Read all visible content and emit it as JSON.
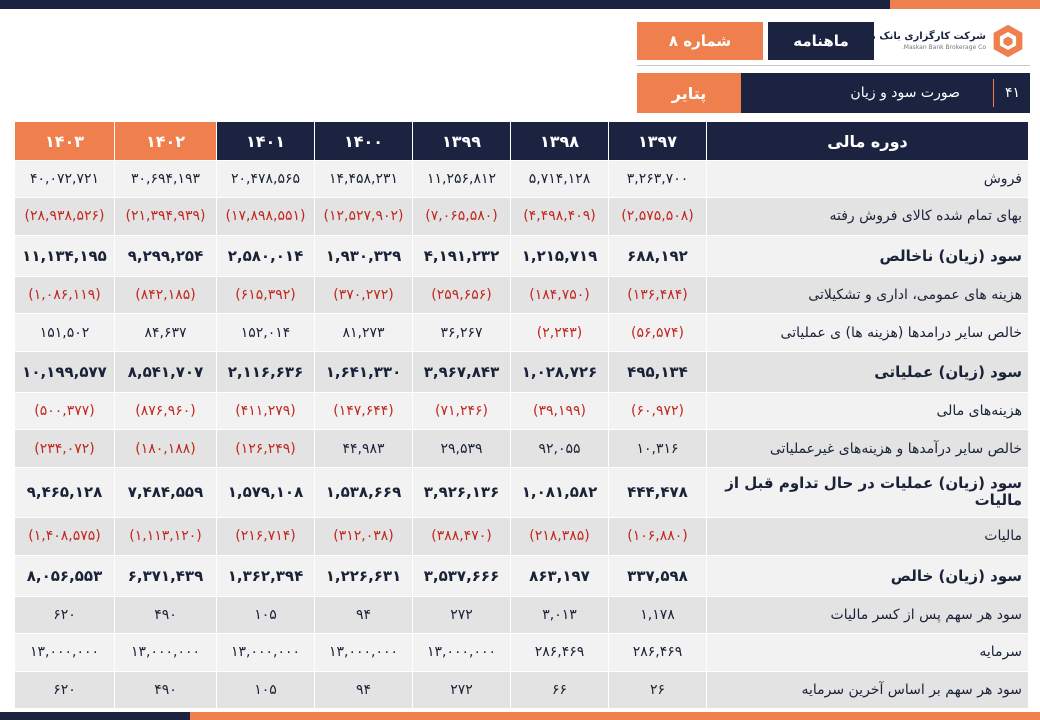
{
  "header": {
    "company_name": "شرکت کارگزاری بانک مسکن",
    "company_name_en": "Maskan Bank Brokerage Co.",
    "monthly_label": "ماهنامه",
    "issue_label": "شماره ۸",
    "page_number": "۴۱",
    "section_title": "صورت سود و زیان",
    "symbol": "پتایر"
  },
  "watermark_text": "شرکت کارگزاری بانک مسکن",
  "table": {
    "label_header": "دوره مالی",
    "years": [
      "۱۳۹۷",
      "۱۳۹۸",
      "۱۳۹۹",
      "۱۴۰۰",
      "۱۴۰۱",
      "۱۴۰۲",
      "۱۴۰۳"
    ],
    "rows": [
      {
        "label": "فروش",
        "values": [
          "۳,۲۶۳,۷۰۰",
          "۵,۷۱۴,۱۲۸",
          "۱۱,۲۵۶,۸۱۲",
          "۱۴,۴۵۸,۲۳۱",
          "۲۰,۴۷۸,۵۶۵",
          "۳۰,۶۹۴,۱۹۳",
          "۴۰,۰۷۲,۷۲۱"
        ]
      },
      {
        "label": "بهای تمام شده کالای فروش رفته",
        "values": [
          "(۲,۵۷۵,۵۰۸)",
          "(۴,۴۹۸,۴۰۹)",
          "(۷,۰۶۵,۵۸۰)",
          "(۱۲,۵۲۷,۹۰۲)",
          "(۱۷,۸۹۸,۵۵۱)",
          "(۲۱,۳۹۴,۹۳۹)",
          "(۲۸,۹۳۸,۵۲۶)"
        ]
      },
      {
        "label": "سود (زیان) ناخالص",
        "values": [
          "۶۸۸,۱۹۲",
          "۱,۲۱۵,۷۱۹",
          "۴,۱۹۱,۲۳۲",
          "۱,۹۳۰,۳۲۹",
          "۲,۵۸۰,۰۱۴",
          "۹,۲۹۹,۲۵۴",
          "۱۱,۱۳۴,۱۹۵"
        ]
      },
      {
        "label": "هزینه های عمومی، اداری و تشکیلاتی",
        "values": [
          "(۱۳۶,۴۸۴)",
          "(۱۸۴,۷۵۰)",
          "(۲۵۹,۶۵۶)",
          "(۳۷۰,۲۷۲)",
          "(۶۱۵,۳۹۲)",
          "(۸۴۲,۱۸۵)",
          "(۱,۰۸۶,۱۱۹)"
        ]
      },
      {
        "label": "خالص سایر درامدها (هزینه ها) ی عملیاتی",
        "values": [
          "(۵۶,۵۷۴)",
          "(۲,۲۴۳)",
          "۳۶,۲۶۷",
          "۸۱,۲۷۳",
          "۱۵۲,۰۱۴",
          "۸۴,۶۳۷",
          "۱۵۱,۵۰۲"
        ]
      },
      {
        "label": "سود (زیان) عملیاتی",
        "values": [
          "۴۹۵,۱۳۴",
          "۱,۰۲۸,۷۲۶",
          "۳,۹۶۷,۸۴۳",
          "۱,۶۴۱,۳۳۰",
          "۲,۱۱۶,۶۳۶",
          "۸,۵۴۱,۷۰۷",
          "۱۰,۱۹۹,۵۷۷"
        ]
      },
      {
        "label": "هزینه‌های مالی",
        "values": [
          "(۶۰,۹۷۲)",
          "(۳۹,۱۹۹)",
          "(۷۱,۲۴۶)",
          "(۱۴۷,۶۴۴)",
          "(۴۱۱,۲۷۹)",
          "(۸۷۶,۹۶۰)",
          "(۵۰۰,۳۷۷)"
        ]
      },
      {
        "label": "خالص سایر درآمدها و هزینه‌های غیرعملیاتی",
        "values": [
          "۱۰,۳۱۶",
          "۹۲,۰۵۵",
          "۲۹,۵۳۹",
          "۴۴,۹۸۳",
          "(۱۲۶,۲۴۹)",
          "(۱۸۰,۱۸۸)",
          "(۲۳۴,۰۷۲)"
        ]
      },
      {
        "label": "سود (زیان) عملیات در حال تداوم قبل از مالیات",
        "values": [
          "۴۴۴,۴۷۸",
          "۱,۰۸۱,۵۸۲",
          "۳,۹۲۶,۱۳۶",
          "۱,۵۳۸,۶۶۹",
          "۱,۵۷۹,۱۰۸",
          "۷,۴۸۴,۵۵۹",
          "۹,۴۶۵,۱۲۸"
        ]
      },
      {
        "label": "مالیات",
        "values": [
          "(۱۰۶,۸۸۰)",
          "(۲۱۸,۳۸۵)",
          "(۳۸۸,۴۷۰)",
          "(۳۱۲,۰۳۸)",
          "(۲۱۶,۷۱۴)",
          "(۱,۱۱۳,۱۲۰)",
          "(۱,۴۰۸,۵۷۵)"
        ]
      },
      {
        "label": "سود (زیان) خالص",
        "values": [
          "۳۳۷,۵۹۸",
          "۸۶۳,۱۹۷",
          "۳,۵۳۷,۶۶۶",
          "۱,۲۲۶,۶۳۱",
          "۱,۳۶۲,۳۹۴",
          "۶,۳۷۱,۴۳۹",
          "۸,۰۵۶,۵۵۳"
        ]
      },
      {
        "label": "سود هر سهم پس از کسر مالیات",
        "values": [
          "۱,۱۷۸",
          "۳,۰۱۳",
          "۲۷۲",
          "۹۴",
          "۱۰۵",
          "۴۹۰",
          "۶۲۰"
        ]
      },
      {
        "label": "سرمایه",
        "values": [
          "۲۸۶,۴۶۹",
          "۲۸۶,۴۶۹",
          "۱۳,۰۰۰,۰۰۰",
          "۱۳,۰۰۰,۰۰۰",
          "۱۳,۰۰۰,۰۰۰",
          "۱۳,۰۰۰,۰۰۰",
          "۱۳,۰۰۰,۰۰۰"
        ]
      },
      {
        "label": "سود هر سهم بر اساس آخرین سرمایه",
        "values": [
          "۲۶",
          "۶۶",
          "۲۷۲",
          "۹۴",
          "۱۰۵",
          "۴۹۰",
          "۶۲۰"
        ]
      }
    ]
  },
  "colors": {
    "navy": "#1b2340",
    "orange": "#ef7f4c",
    "negative": "#c0281f",
    "row_light": "#f2f2f2",
    "row_dark": "#e3e3e3"
  },
  "icons": [
    "company-logo-icon",
    "watermark-logo-icon"
  ]
}
